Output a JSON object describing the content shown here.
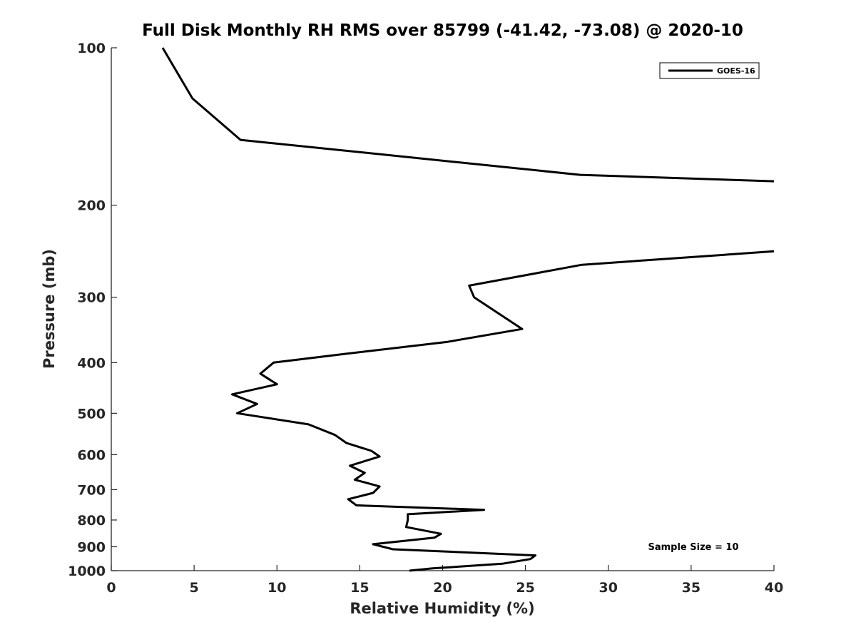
{
  "chart_data": {
    "type": "line",
    "title": "Full Disk Monthly RH RMS over 85799 (-41.42, -73.08) @ 2020-10",
    "xlabel": "Relative Humidity (%)",
    "ylabel": "Pressure (mb)",
    "xlim": [
      0,
      40
    ],
    "ylim": [
      100,
      1000
    ],
    "y_scale": "log",
    "y_reversed": true,
    "x_ticks": [
      0,
      5,
      10,
      15,
      20,
      25,
      30,
      35,
      40
    ],
    "y_ticks": [
      100,
      200,
      300,
      400,
      500,
      600,
      700,
      800,
      900,
      1000
    ],
    "grid": false,
    "legend_position": "top-right",
    "annotation": "Sample Size = 10",
    "series": [
      {
        "name": "GOES-16",
        "color": "#000000",
        "segments": [
          {
            "x": [
              3.1,
              4.9,
              7.8,
              28.3,
              40.0
            ],
            "y": [
              100,
              125,
              150,
              175,
              180
            ]
          },
          {
            "x": [
              40.0,
              28.4,
              21.6,
              21.9,
              24.8,
              20.3,
              14.1,
              9.8,
              9.0,
              10.0,
              7.3,
              8.8,
              7.6,
              11.9,
              13.5,
              14.2,
              15.7,
              16.2,
              14.4,
              15.3,
              14.7,
              16.2,
              15.8,
              14.3,
              14.8,
              22.5,
              17.9,
              17.9,
              17.8,
              19.9,
              19.5,
              15.8,
              17.0,
              25.6,
              25.3,
              23.6,
              19.4,
              18.0
            ],
            "y": [
              245,
              260,
              285,
              300,
              345,
              365,
              385,
              400,
              420,
              440,
              460,
              480,
              500,
              525,
              550,
              570,
              590,
              605,
              630,
              650,
              670,
              690,
              710,
              730,
              750,
              765,
              780,
              800,
              825,
              850,
              865,
              890,
              910,
              935,
              950,
              970,
              990,
              1000
            ]
          }
        ]
      }
    ]
  }
}
